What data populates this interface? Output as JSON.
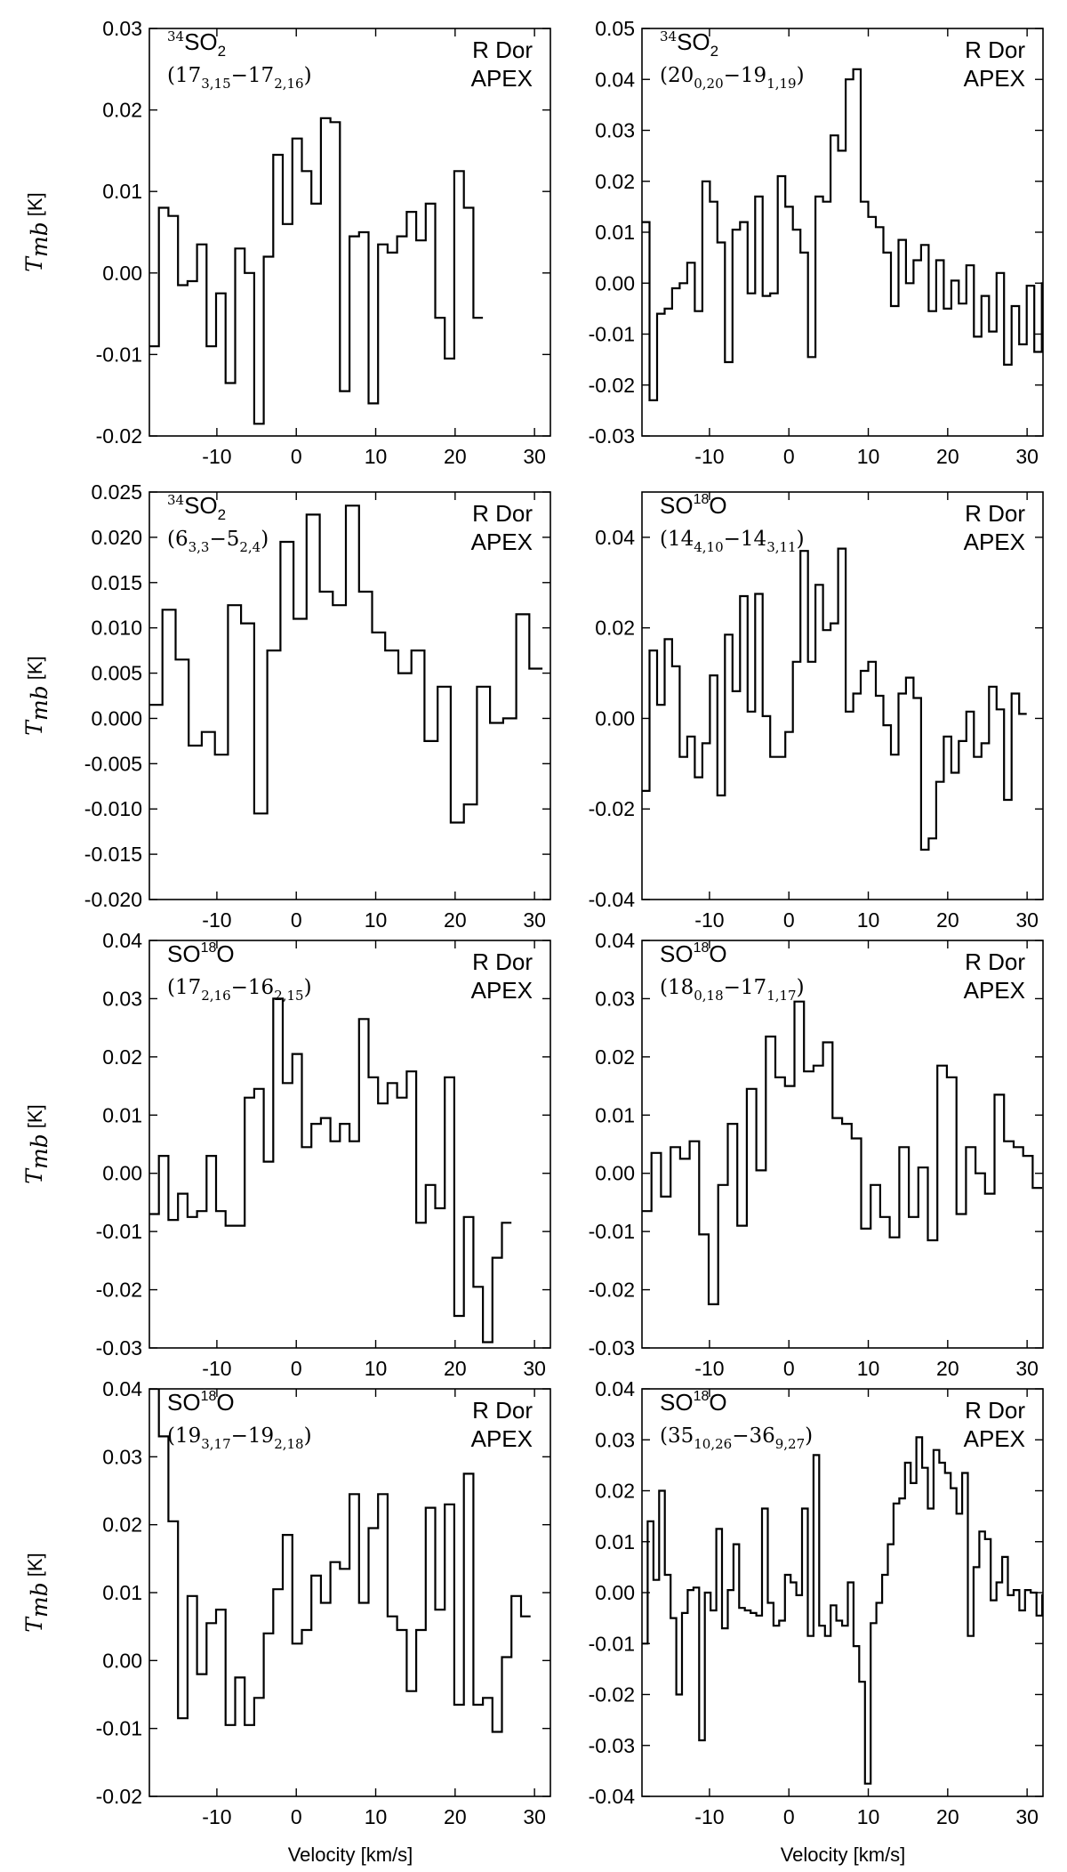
{
  "figure": {
    "xlabel": "Velocity [km/s]",
    "ylabel_main": "T",
    "ylabel_sub": "mb",
    "ylabel_unit": "[K]"
  },
  "chart_data": [
    {
      "type": "line",
      "step": true,
      "molecule": {
        "pre": "34",
        "base": "SO",
        "sub": "2",
        "mid": "",
        "sup_after": "",
        "post": ""
      },
      "transition": {
        "a": "17",
        "a_sub": "3,15",
        "b": "17",
        "b_sub": "2,16"
      },
      "label1": "R Dor",
      "label2": "APEX",
      "xlim": [
        -18.5,
        32
      ],
      "ylim": [
        -0.02,
        0.03
      ],
      "xticks": [
        "-10",
        "0",
        "10",
        "20",
        "30"
      ],
      "xtick_values": [
        -10,
        0,
        10,
        20,
        30
      ],
      "yticks": [
        "0.03",
        "0.02",
        "0.01",
        "0.00",
        "-0.01",
        "-0.02"
      ],
      "ytick_values": [
        0.03,
        0.02,
        0.01,
        0.0,
        -0.01,
        -0.02
      ],
      "x_start": -18.5,
      "x_step": 1.2,
      "values": [
        -0.009,
        0.008,
        0.007,
        -0.0015,
        -0.001,
        0.0035,
        -0.009,
        -0.0025,
        -0.0135,
        0.003,
        0.0,
        -0.0185,
        0.002,
        0.0145,
        0.006,
        0.0165,
        0.0125,
        0.0085,
        0.019,
        0.0185,
        -0.0145,
        0.0045,
        0.005,
        -0.016,
        0.0035,
        0.0025,
        0.0045,
        0.0075,
        0.004,
        0.0085,
        -0.0055,
        -0.0105,
        0.0125,
        0.008,
        -0.0055
      ]
    },
    {
      "type": "line",
      "step": true,
      "molecule": {
        "pre": "34",
        "base": "SO",
        "sub": "2",
        "mid": "",
        "sup_after": "",
        "post": ""
      },
      "transition": {
        "a": "20",
        "a_sub": "0,20",
        "b": "19",
        "b_sub": "1,19"
      },
      "label1": "R Dor",
      "label2": "APEX",
      "xlim": [
        -18.5,
        32
      ],
      "ylim": [
        -0.03,
        0.05
      ],
      "xticks": [
        "-10",
        "0",
        "10",
        "20",
        "30"
      ],
      "xtick_values": [
        -10,
        0,
        10,
        20,
        30
      ],
      "yticks": [
        "0.05",
        "0.04",
        "0.03",
        "0.02",
        "0.01",
        "0.00",
        "-0.01",
        "-0.02",
        "-0.03"
      ],
      "ytick_values": [
        0.05,
        0.04,
        0.03,
        0.02,
        0.01,
        0.0,
        -0.01,
        -0.02,
        -0.03
      ],
      "x_start": -18.5,
      "x_step": 0.95,
      "values": [
        0.012,
        -0.023,
        -0.006,
        -0.005,
        -0.001,
        0.0,
        0.004,
        -0.0055,
        0.02,
        0.016,
        0.008,
        -0.0155,
        0.0105,
        0.012,
        -0.002,
        0.017,
        -0.0025,
        -0.002,
        0.021,
        0.015,
        0.0105,
        0.006,
        -0.0145,
        0.017,
        0.016,
        0.029,
        0.026,
        0.04,
        0.042,
        0.016,
        0.013,
        0.011,
        0.006,
        -0.0045,
        0.0085,
        0.0,
        0.0045,
        0.0075,
        -0.0055,
        0.0045,
        -0.005,
        0.0005,
        -0.004,
        0.0035,
        -0.0105,
        -0.0025,
        -0.0095,
        0.002,
        -0.016,
        -0.0045,
        -0.012,
        -0.0005,
        -0.0135,
        0.0,
        0.004,
        0.0115,
        -0.009,
        0.0115
      ]
    },
    {
      "type": "line",
      "step": true,
      "molecule": {
        "pre": "34",
        "base": "SO",
        "sub": "2",
        "mid": "",
        "sup_after": "",
        "post": ""
      },
      "transition": {
        "a": "6",
        "a_sub": "3,3",
        "b": "5",
        "b_sub": "2,4"
      },
      "label1": "R Dor",
      "label2": "APEX",
      "xlim": [
        -18.5,
        32
      ],
      "ylim": [
        -0.02,
        0.025
      ],
      "xticks": [
        "-10",
        "0",
        "10",
        "20",
        "30"
      ],
      "xtick_values": [
        -10,
        0,
        10,
        20,
        30
      ],
      "yticks": [
        "0.025",
        "0.020",
        "0.015",
        "0.010",
        "0.005",
        "0.000",
        "-0.005",
        "-0.010",
        "-0.015",
        "-0.020"
      ],
      "ytick_values": [
        0.025,
        0.02,
        0.015,
        0.01,
        0.005,
        0.0,
        -0.005,
        -0.01,
        -0.015,
        -0.02
      ],
      "x_start": -18.5,
      "x_step": 1.65,
      "values": [
        0.0015,
        0.012,
        0.0065,
        -0.003,
        -0.0015,
        -0.004,
        0.0125,
        0.0105,
        -0.0105,
        0.0075,
        0.0195,
        0.011,
        0.0225,
        0.014,
        0.0125,
        0.0235,
        0.014,
        0.0095,
        0.0075,
        0.005,
        0.0075,
        -0.0025,
        0.0035,
        -0.0115,
        -0.0095,
        0.0035,
        -0.0005,
        0.0,
        0.0115,
        0.0055
      ]
    },
    {
      "type": "line",
      "step": true,
      "molecule": {
        "pre": "",
        "base": "SO",
        "sub": "",
        "mid": "",
        "sup_after": "18",
        "post": "O"
      },
      "transition": {
        "a": "14",
        "a_sub": "4,10",
        "b": "14",
        "b_sub": "3,11"
      },
      "label1": "R Dor",
      "label2": "APEX",
      "xlim": [
        -18.5,
        32
      ],
      "ylim": [
        -0.04,
        0.05
      ],
      "xticks": [
        "-10",
        "0",
        "10",
        "20",
        "30"
      ],
      "xtick_values": [
        -10,
        0,
        10,
        20,
        30
      ],
      "yticks": [
        "0.04",
        "0.02",
        "0.00",
        "-0.02",
        "-0.04"
      ],
      "ytick_values": [
        0.04,
        0.02,
        0.0,
        -0.02,
        -0.04
      ],
      "x_start": -18.5,
      "x_step": 0.95,
      "values": [
        -0.016,
        0.015,
        0.003,
        0.0175,
        0.0115,
        -0.0085,
        -0.004,
        -0.013,
        -0.0055,
        0.0095,
        -0.017,
        0.0185,
        0.006,
        0.027,
        0.0015,
        0.0275,
        0.0005,
        -0.0085,
        -0.0085,
        -0.003,
        0.0125,
        0.037,
        0.0125,
        0.0295,
        0.0195,
        0.021,
        0.0375,
        0.0015,
        0.0055,
        0.0105,
        0.0125,
        0.005,
        -0.0015,
        -0.008,
        0.0055,
        0.009,
        0.0045,
        -0.029,
        -0.0265,
        -0.014,
        -0.004,
        -0.012,
        -0.005,
        0.0015,
        -0.0085,
        -0.0055,
        0.007,
        0.002,
        -0.018,
        0.0055,
        0.001
      ]
    },
    {
      "type": "line",
      "step": true,
      "molecule": {
        "pre": "",
        "base": "SO",
        "sub": "",
        "mid": "",
        "sup_after": "18",
        "post": "O"
      },
      "transition": {
        "a": "17",
        "a_sub": "2,16",
        "b": "16",
        "b_sub": "2,15"
      },
      "label1": "R Dor",
      "label2": "APEX",
      "xlim": [
        -18.5,
        32
      ],
      "ylim": [
        -0.03,
        0.04
      ],
      "xticks": [
        "-10",
        "0",
        "10",
        "20",
        "30"
      ],
      "xtick_values": [
        -10,
        0,
        10,
        20,
        30
      ],
      "yticks": [
        "0.04",
        "0.03",
        "0.02",
        "0.01",
        "0.00",
        "-0.01",
        "-0.02",
        "-0.03"
      ],
      "ytick_values": [
        0.04,
        0.03,
        0.02,
        0.01,
        0.0,
        -0.01,
        -0.02,
        -0.03
      ],
      "x_start": -18.5,
      "x_step": 1.2,
      "values": [
        -0.007,
        0.003,
        -0.008,
        -0.0035,
        -0.0075,
        -0.0065,
        0.003,
        -0.0065,
        -0.009,
        -0.009,
        0.013,
        0.0145,
        0.002,
        0.03,
        0.0155,
        0.0205,
        0.0045,
        0.0085,
        0.0095,
        0.0055,
        0.0085,
        0.0055,
        0.0265,
        0.0165,
        0.012,
        0.0155,
        0.013,
        0.0175,
        -0.0085,
        -0.002,
        -0.006,
        0.0165,
        -0.0245,
        -0.0075,
        -0.0195,
        -0.029,
        -0.0145,
        -0.0085
      ]
    },
    {
      "type": "line",
      "step": true,
      "molecule": {
        "pre": "",
        "base": "SO",
        "sub": "",
        "mid": "",
        "sup_after": "18",
        "post": "O"
      },
      "transition": {
        "a": "18",
        "a_sub": "0,18",
        "b": "17",
        "b_sub": "1,17"
      },
      "label1": "R Dor",
      "label2": "APEX",
      "xlim": [
        -18.5,
        32
      ],
      "ylim": [
        -0.03,
        0.04
      ],
      "xticks": [
        "-10",
        "0",
        "10",
        "20",
        "30"
      ],
      "xtick_values": [
        -10,
        0,
        10,
        20,
        30
      ],
      "yticks": [
        "0.04",
        "0.03",
        "0.02",
        "0.01",
        "0.00",
        "-0.01",
        "-0.02",
        "-0.03"
      ],
      "ytick_values": [
        0.04,
        0.03,
        0.02,
        0.01,
        0.0,
        -0.01,
        -0.02,
        -0.03
      ],
      "x_start": -18.5,
      "x_step": 1.2,
      "values": [
        -0.0065,
        0.0035,
        -0.004,
        0.0045,
        0.0025,
        0.0055,
        -0.0105,
        -0.0225,
        -0.002,
        0.0085,
        -0.009,
        0.0145,
        0.0005,
        0.0235,
        0.0165,
        0.015,
        0.0295,
        0.0175,
        0.0185,
        0.0225,
        0.0095,
        0.0085,
        0.006,
        -0.0095,
        -0.002,
        -0.0075,
        -0.011,
        0.0045,
        -0.0075,
        0.001,
        -0.0115,
        0.0185,
        0.0165,
        -0.007,
        0.0045,
        0.0,
        -0.0035,
        0.0135,
        0.0055,
        0.0045,
        0.003,
        -0.0025
      ]
    },
    {
      "type": "line",
      "step": true,
      "molecule": {
        "pre": "",
        "base": "SO",
        "sub": "",
        "mid": "",
        "sup_after": "18",
        "post": "O"
      },
      "transition": {
        "a": "19",
        "a_sub": "3,17",
        "b": "19",
        "b_sub": "2,18"
      },
      "label1": "R Dor",
      "label2": "APEX",
      "xlim": [
        -18.5,
        32
      ],
      "ylim": [
        -0.02,
        0.04
      ],
      "xticks": [
        "-10",
        "0",
        "10",
        "20",
        "30"
      ],
      "xtick_values": [
        -10,
        0,
        10,
        20,
        30
      ],
      "yticks": [
        "0.04",
        "0.03",
        "0.02",
        "0.01",
        "0.00",
        "-0.01",
        "-0.02"
      ],
      "ytick_values": [
        0.04,
        0.03,
        0.02,
        0.01,
        0.0,
        -0.01,
        -0.02
      ],
      "x_start": -18.5,
      "x_step": 1.2,
      "values": [
        0.04,
        0.033,
        0.0205,
        -0.0085,
        0.0095,
        -0.002,
        0.0055,
        0.0075,
        -0.0095,
        -0.0025,
        -0.0095,
        -0.0055,
        0.004,
        0.0105,
        0.0185,
        0.0025,
        0.0045,
        0.0125,
        0.0085,
        0.0145,
        0.0135,
        0.0245,
        0.0085,
        0.0195,
        0.0245,
        0.0065,
        0.0045,
        -0.0045,
        0.0045,
        0.0225,
        0.0075,
        0.023,
        -0.0065,
        0.0275,
        -0.0065,
        -0.0055,
        -0.0105,
        0.0005,
        0.0095,
        0.0065
      ]
    },
    {
      "type": "line",
      "step": true,
      "molecule": {
        "pre": "",
        "base": "SO",
        "sub": "",
        "mid": "",
        "sup_after": "18",
        "post": "O"
      },
      "transition": {
        "a": "35",
        "a_sub": "10,26",
        "b": "36",
        "b_sub": "9,27"
      },
      "label1": "R Dor",
      "label2": "APEX",
      "xlim": [
        -18.5,
        32
      ],
      "ylim": [
        -0.04,
        0.04
      ],
      "xticks": [
        "-10",
        "0",
        "10",
        "20",
        "30"
      ],
      "xtick_values": [
        -10,
        0,
        10,
        20,
        30
      ],
      "yticks": [
        "0.04",
        "0.03",
        "0.02",
        "0.01",
        "0.00",
        "-0.01",
        "-0.02",
        "-0.03",
        "-0.04"
      ],
      "ytick_values": [
        0.04,
        0.03,
        0.02,
        0.01,
        0.0,
        -0.01,
        -0.02,
        -0.03,
        -0.04
      ],
      "x_start": -18.5,
      "x_step": 0.72,
      "values": [
        -0.01,
        0.014,
        0.0025,
        0.02,
        0.0035,
        -0.005,
        -0.02,
        -0.004,
        0.0005,
        0.001,
        -0.029,
        0.0,
        -0.0035,
        0.0125,
        -0.007,
        0.0005,
        0.0095,
        -0.003,
        -0.0035,
        -0.004,
        -0.0045,
        0.0165,
        -0.002,
        -0.0065,
        -0.0055,
        0.0035,
        0.002,
        -0.0005,
        0.0165,
        -0.0085,
        0.027,
        -0.0065,
        -0.0085,
        -0.0025,
        -0.0055,
        -0.0065,
        0.002,
        -0.0105,
        -0.0175,
        -0.0375,
        -0.006,
        -0.002,
        0.0035,
        0.0095,
        0.0175,
        0.0185,
        0.0255,
        0.0215,
        0.0305,
        0.0245,
        0.0165,
        0.028,
        0.0255,
        0.0235,
        0.0205,
        0.0155,
        0.0235,
        -0.0085,
        0.005,
        0.012,
        0.0105,
        -0.0015,
        0.002,
        0.007,
        -0.0005,
        0.0005,
        -0.0035,
        0.0005,
        0.0,
        -0.0045,
        -0.0005,
        0.0085,
        0.0145,
        -0.0025,
        -0.0125,
        0.0045,
        0.0175,
        -0.006,
        0.0005,
        -0.0075,
        -0.0035,
        0.0,
        -0.0035,
        0.001,
        0.0015,
        -0.0005,
        -0.0055,
        -0.0135,
        -0.0015,
        -0.0055
      ]
    }
  ]
}
